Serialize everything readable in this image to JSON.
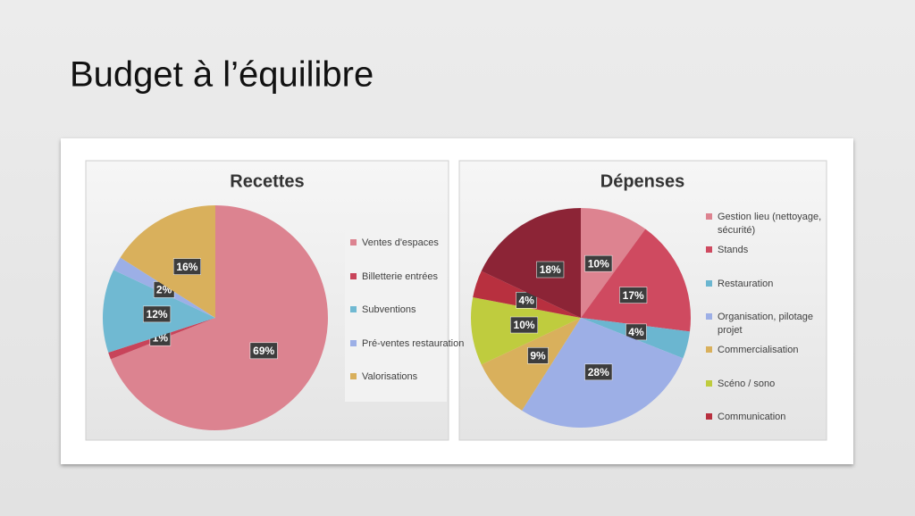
{
  "title": "Budget à l’équilibre",
  "chart_data": [
    {
      "type": "pie",
      "title": "Recettes",
      "categories": [
        "Ventes d'espaces",
        "Billetterie entrées",
        "Subventions",
        "Pré-ventes restauration",
        "Valorisations"
      ],
      "values": [
        69,
        1,
        12,
        2,
        16
      ],
      "value_labels": [
        "69%",
        "1%",
        "12%",
        "2%",
        "16%"
      ],
      "colors": [
        "#dc8390",
        "#c8445a",
        "#70b9d2",
        "#9cafe6",
        "#d9b05c"
      ],
      "legend": "right"
    },
    {
      "type": "pie",
      "title": "Dépenses",
      "categories": [
        "Gestion lieu (nettoyage, sécurité)",
        "Stands",
        "Restauration",
        "Organisation, pilotage projet",
        "Commercialisation",
        "Scéno / sono",
        "Communication",
        null
      ],
      "values": [
        10,
        17,
        4,
        28,
        9,
        10,
        4,
        18
      ],
      "value_labels": [
        "10%",
        "17%",
        "4%",
        "28%",
        "9%",
        "10%",
        "4%",
        "18%"
      ],
      "colors": [
        "#dd8390",
        "#cf4a60",
        "#6bb6d0",
        "#9dafe6",
        "#d9b05c",
        "#bfcc3e",
        "#b8303f",
        "#8c2436"
      ],
      "legend": "right"
    }
  ]
}
